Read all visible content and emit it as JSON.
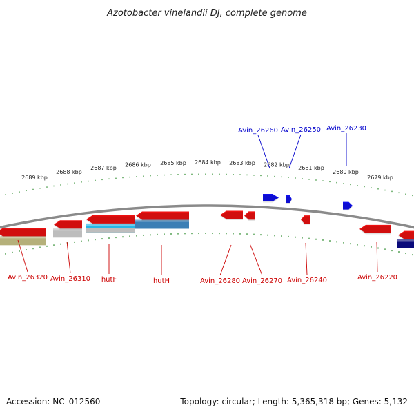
{
  "title": "Azotobacter vinelandii DJ, complete genome",
  "footer": {
    "accession": "Accession: NC_012560",
    "summary": "Topology: circular; Length: 5,365,318 bp; Genes: 5,132"
  },
  "colors": {
    "backbone": "#8a8a8a",
    "tick": "#2a8a2a",
    "reverse_gene": "#ee1111",
    "forward_gene": "#1111ee",
    "reverse_label": "#cc0000",
    "forward_label": "#0000cc",
    "feature_olive": "#b5b07a",
    "feature_grey": "#bdbdbd",
    "feature_cyan": "#27b6e6",
    "feature_steel": "#3b7fb5",
    "feature_navy": "#0a0a7a"
  },
  "position_ticks": [
    {
      "label": "2689 kbp"
    },
    {
      "label": "2688 kbp"
    },
    {
      "label": "2687 kbp"
    },
    {
      "label": "2686 kbp"
    },
    {
      "label": "2685 kbp"
    },
    {
      "label": "2684 kbp"
    },
    {
      "label": "2683 kbp"
    },
    {
      "label": "2682 kbp"
    },
    {
      "label": "2681 kbp"
    },
    {
      "label": "2680 kbp"
    },
    {
      "label": "2679 kbp"
    }
  ],
  "forward_gene_labels": [
    {
      "name": "Avin_26260"
    },
    {
      "name": "Avin_26250"
    },
    {
      "name": "Avin_26230"
    }
  ],
  "reverse_gene_labels": [
    {
      "name": "Avin_26320"
    },
    {
      "name": "Avin_26310"
    },
    {
      "name": "hutF"
    },
    {
      "name": "hutH"
    },
    {
      "name": "Avin_26280"
    },
    {
      "name": "Avin_26270"
    },
    {
      "name": "Avin_26240"
    },
    {
      "name": "Avin_26220"
    }
  ]
}
